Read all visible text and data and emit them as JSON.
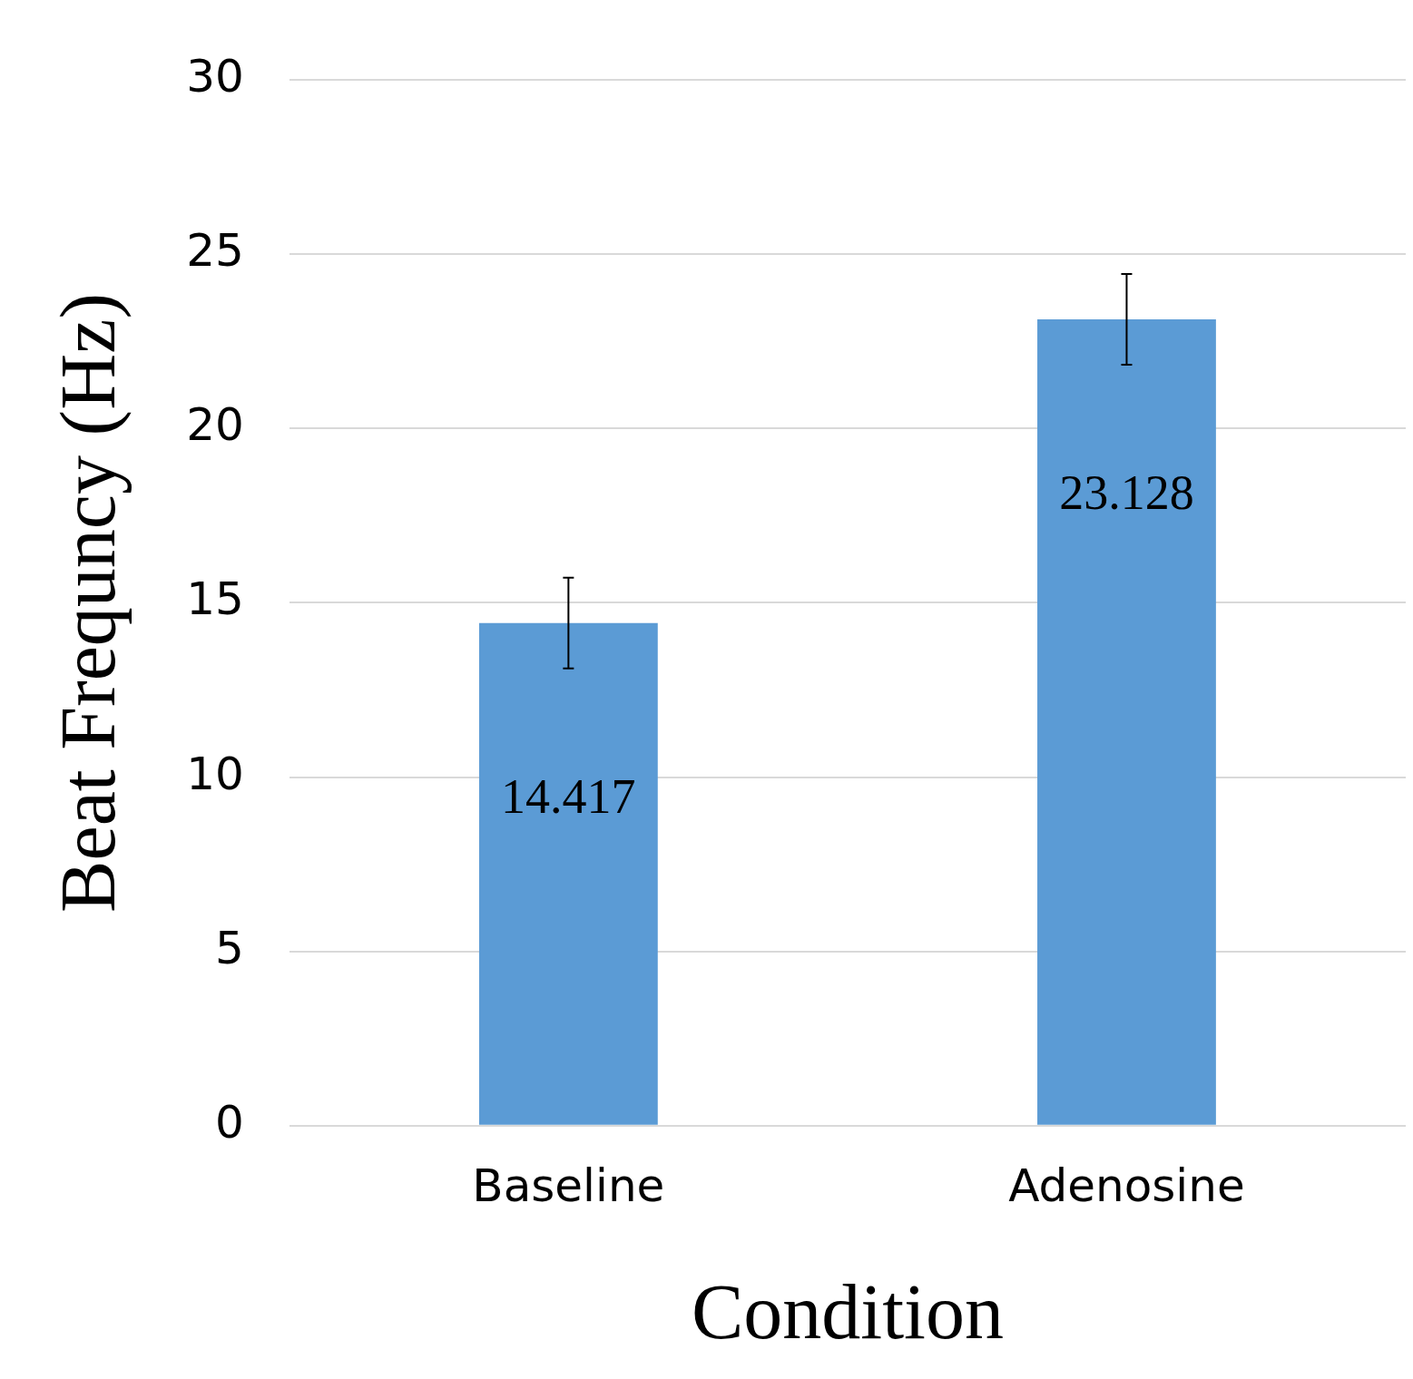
{
  "chart_data": {
    "type": "bar",
    "xlabel": "Condition",
    "ylabel": "Beat Frequncy (Hz)",
    "categories": [
      "Baseline",
      "Adenosine"
    ],
    "values": [
      14.417,
      23.128
    ],
    "errors": [
      1.3,
      1.3
    ],
    "color": "#5b9bd5",
    "ylim": [
      0,
      30
    ],
    "yticks": [
      0,
      5,
      10,
      15,
      20,
      25,
      30
    ],
    "grid": "y",
    "data_labels": true,
    "legend": false
  }
}
